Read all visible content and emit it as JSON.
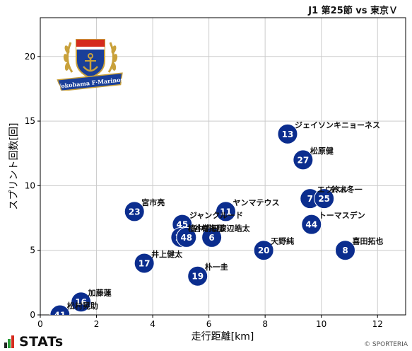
{
  "header": {
    "title": "J1 第25節 vs 東京Ｖ"
  },
  "team_logo": {
    "name": "Yokohama F·Marinos",
    "icon": "club-crest-icon"
  },
  "footer": {
    "brand": "STATs",
    "credit": "© SPORTERIA"
  },
  "colors": {
    "marker": "#0b2d8e",
    "marker_text": "#ffffff",
    "axis": "#000000",
    "grid": "#cccccc"
  },
  "chart_data": {
    "type": "scatter",
    "xlabel": "走行距離[km]",
    "ylabel": "スプリント回数[回]",
    "xlim": [
      0,
      13
    ],
    "ylim": [
      0,
      23
    ],
    "xticks": [
      0,
      2,
      4,
      6,
      8,
      10,
      12
    ],
    "yticks": [
      0,
      5,
      10,
      15,
      20
    ],
    "grid": true,
    "points": [
      {
        "number": "13",
        "name": "ジェイソンキニョーネス",
        "x": 8.8,
        "y": 14
      },
      {
        "number": "27",
        "name": "松原健",
        "x": 9.35,
        "y": 12
      },
      {
        "number": "7",
        "name": "エウベル",
        "x": 9.6,
        "y": 9
      },
      {
        "number": "25",
        "name": "鈴木冬一",
        "x": 10.1,
        "y": 9
      },
      {
        "number": "44",
        "name": "トーマスデン",
        "x": 9.65,
        "y": 7
      },
      {
        "number": "8",
        "name": "喜田拓也",
        "x": 10.85,
        "y": 5
      },
      {
        "number": "20",
        "name": "天野純",
        "x": 7.95,
        "y": 5
      },
      {
        "number": "11",
        "name": "ヤンマテウス",
        "x": 6.6,
        "y": 8
      },
      {
        "number": "6",
        "name": "渡辺皓太",
        "x": 6.1,
        "y": 6
      },
      {
        "number": "45",
        "name": "ジャンクルード",
        "x": 5.05,
        "y": 7
      },
      {
        "number": "14",
        "name": "植中朝日",
        "x": 5.0,
        "y": 6
      },
      {
        "number": "48",
        "name": "谷村海那",
        "x": 5.2,
        "y": 6
      },
      {
        "number": "23",
        "name": "宮市亮",
        "x": 3.35,
        "y": 8
      },
      {
        "number": "17",
        "name": "井上健太",
        "x": 3.7,
        "y": 4
      },
      {
        "number": "19",
        "name": "朴一圭",
        "x": 5.6,
        "y": 3
      },
      {
        "number": "16",
        "name": "加藤蓮",
        "x": 1.45,
        "y": 1
      },
      {
        "number": "41",
        "name": "松村晃助",
        "x": 0.7,
        "y": 0
      }
    ]
  }
}
